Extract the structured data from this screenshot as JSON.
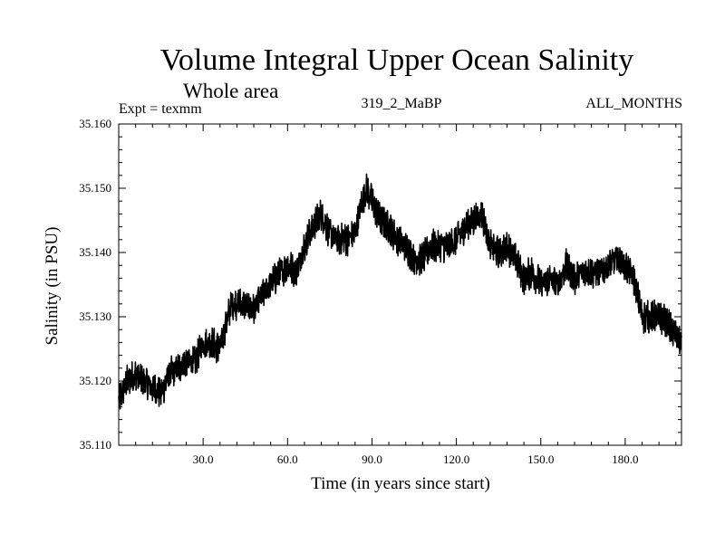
{
  "header": {
    "title": "Volume Integral Upper Ocean Salinity",
    "subtitle": "Whole area",
    "expt": "Expt = texmm",
    "run_id": "319_2_MaBP",
    "period": "ALL_MONTHS"
  },
  "colors": {
    "line": "#000000",
    "axis": "#000000",
    "background": "#ffffff"
  },
  "chart_data": {
    "type": "line",
    "title": "Volume Integral Upper Ocean Salinity",
    "subtitle": "Whole area",
    "xlabel": "Time (in years since start)",
    "ylabel": "Salinity (in PSU)",
    "xlim": [
      0,
      200
    ],
    "ylim": [
      35.11,
      35.16
    ],
    "x_ticks": [
      30,
      60,
      90,
      120,
      150,
      180
    ],
    "x_tick_labels": [
      "30.0",
      "60.0",
      "90.0",
      "120.0",
      "150.0",
      "180.0"
    ],
    "y_ticks": [
      35.11,
      35.12,
      35.13,
      35.14,
      35.15,
      35.16
    ],
    "y_tick_labels": [
      "35.110",
      "35.120",
      "35.130",
      "35.140",
      "35.150",
      "35.160"
    ],
    "grid": false,
    "series": [
      {
        "name": "Salinity",
        "x": [
          0,
          3,
          6,
          9,
          12,
          15,
          18,
          21,
          24,
          27,
          30,
          33,
          36,
          40,
          44,
          48,
          52,
          56,
          60,
          63,
          66,
          69,
          72,
          75,
          78,
          81,
          84,
          86,
          88,
          90,
          93,
          96,
          99,
          102,
          105,
          108,
          111,
          114,
          117,
          120,
          123,
          126,
          129,
          132,
          135,
          138,
          141,
          144,
          147,
          150,
          153,
          156,
          159,
          162,
          165,
          168,
          171,
          174,
          177,
          180,
          183,
          186,
          189,
          192,
          195,
          198,
          200
        ],
        "y": [
          35.117,
          35.12,
          35.121,
          35.12,
          35.119,
          35.118,
          35.121,
          35.122,
          35.123,
          35.123,
          35.126,
          35.126,
          35.125,
          35.132,
          35.132,
          35.131,
          35.134,
          35.136,
          35.138,
          35.137,
          35.141,
          35.144,
          35.146,
          35.143,
          35.142,
          35.142,
          35.143,
          35.147,
          35.15,
          35.148,
          35.145,
          35.144,
          35.142,
          35.141,
          35.139,
          35.139,
          35.141,
          35.141,
          35.141,
          35.142,
          35.144,
          35.145,
          35.146,
          35.141,
          35.14,
          35.141,
          35.139,
          35.136,
          35.137,
          35.135,
          35.136,
          35.135,
          35.138,
          35.136,
          35.137,
          35.137,
          35.137,
          35.138,
          35.139,
          35.138,
          35.136,
          35.13,
          35.13,
          35.13,
          35.129,
          35.127,
          35.126
        ]
      }
    ]
  }
}
